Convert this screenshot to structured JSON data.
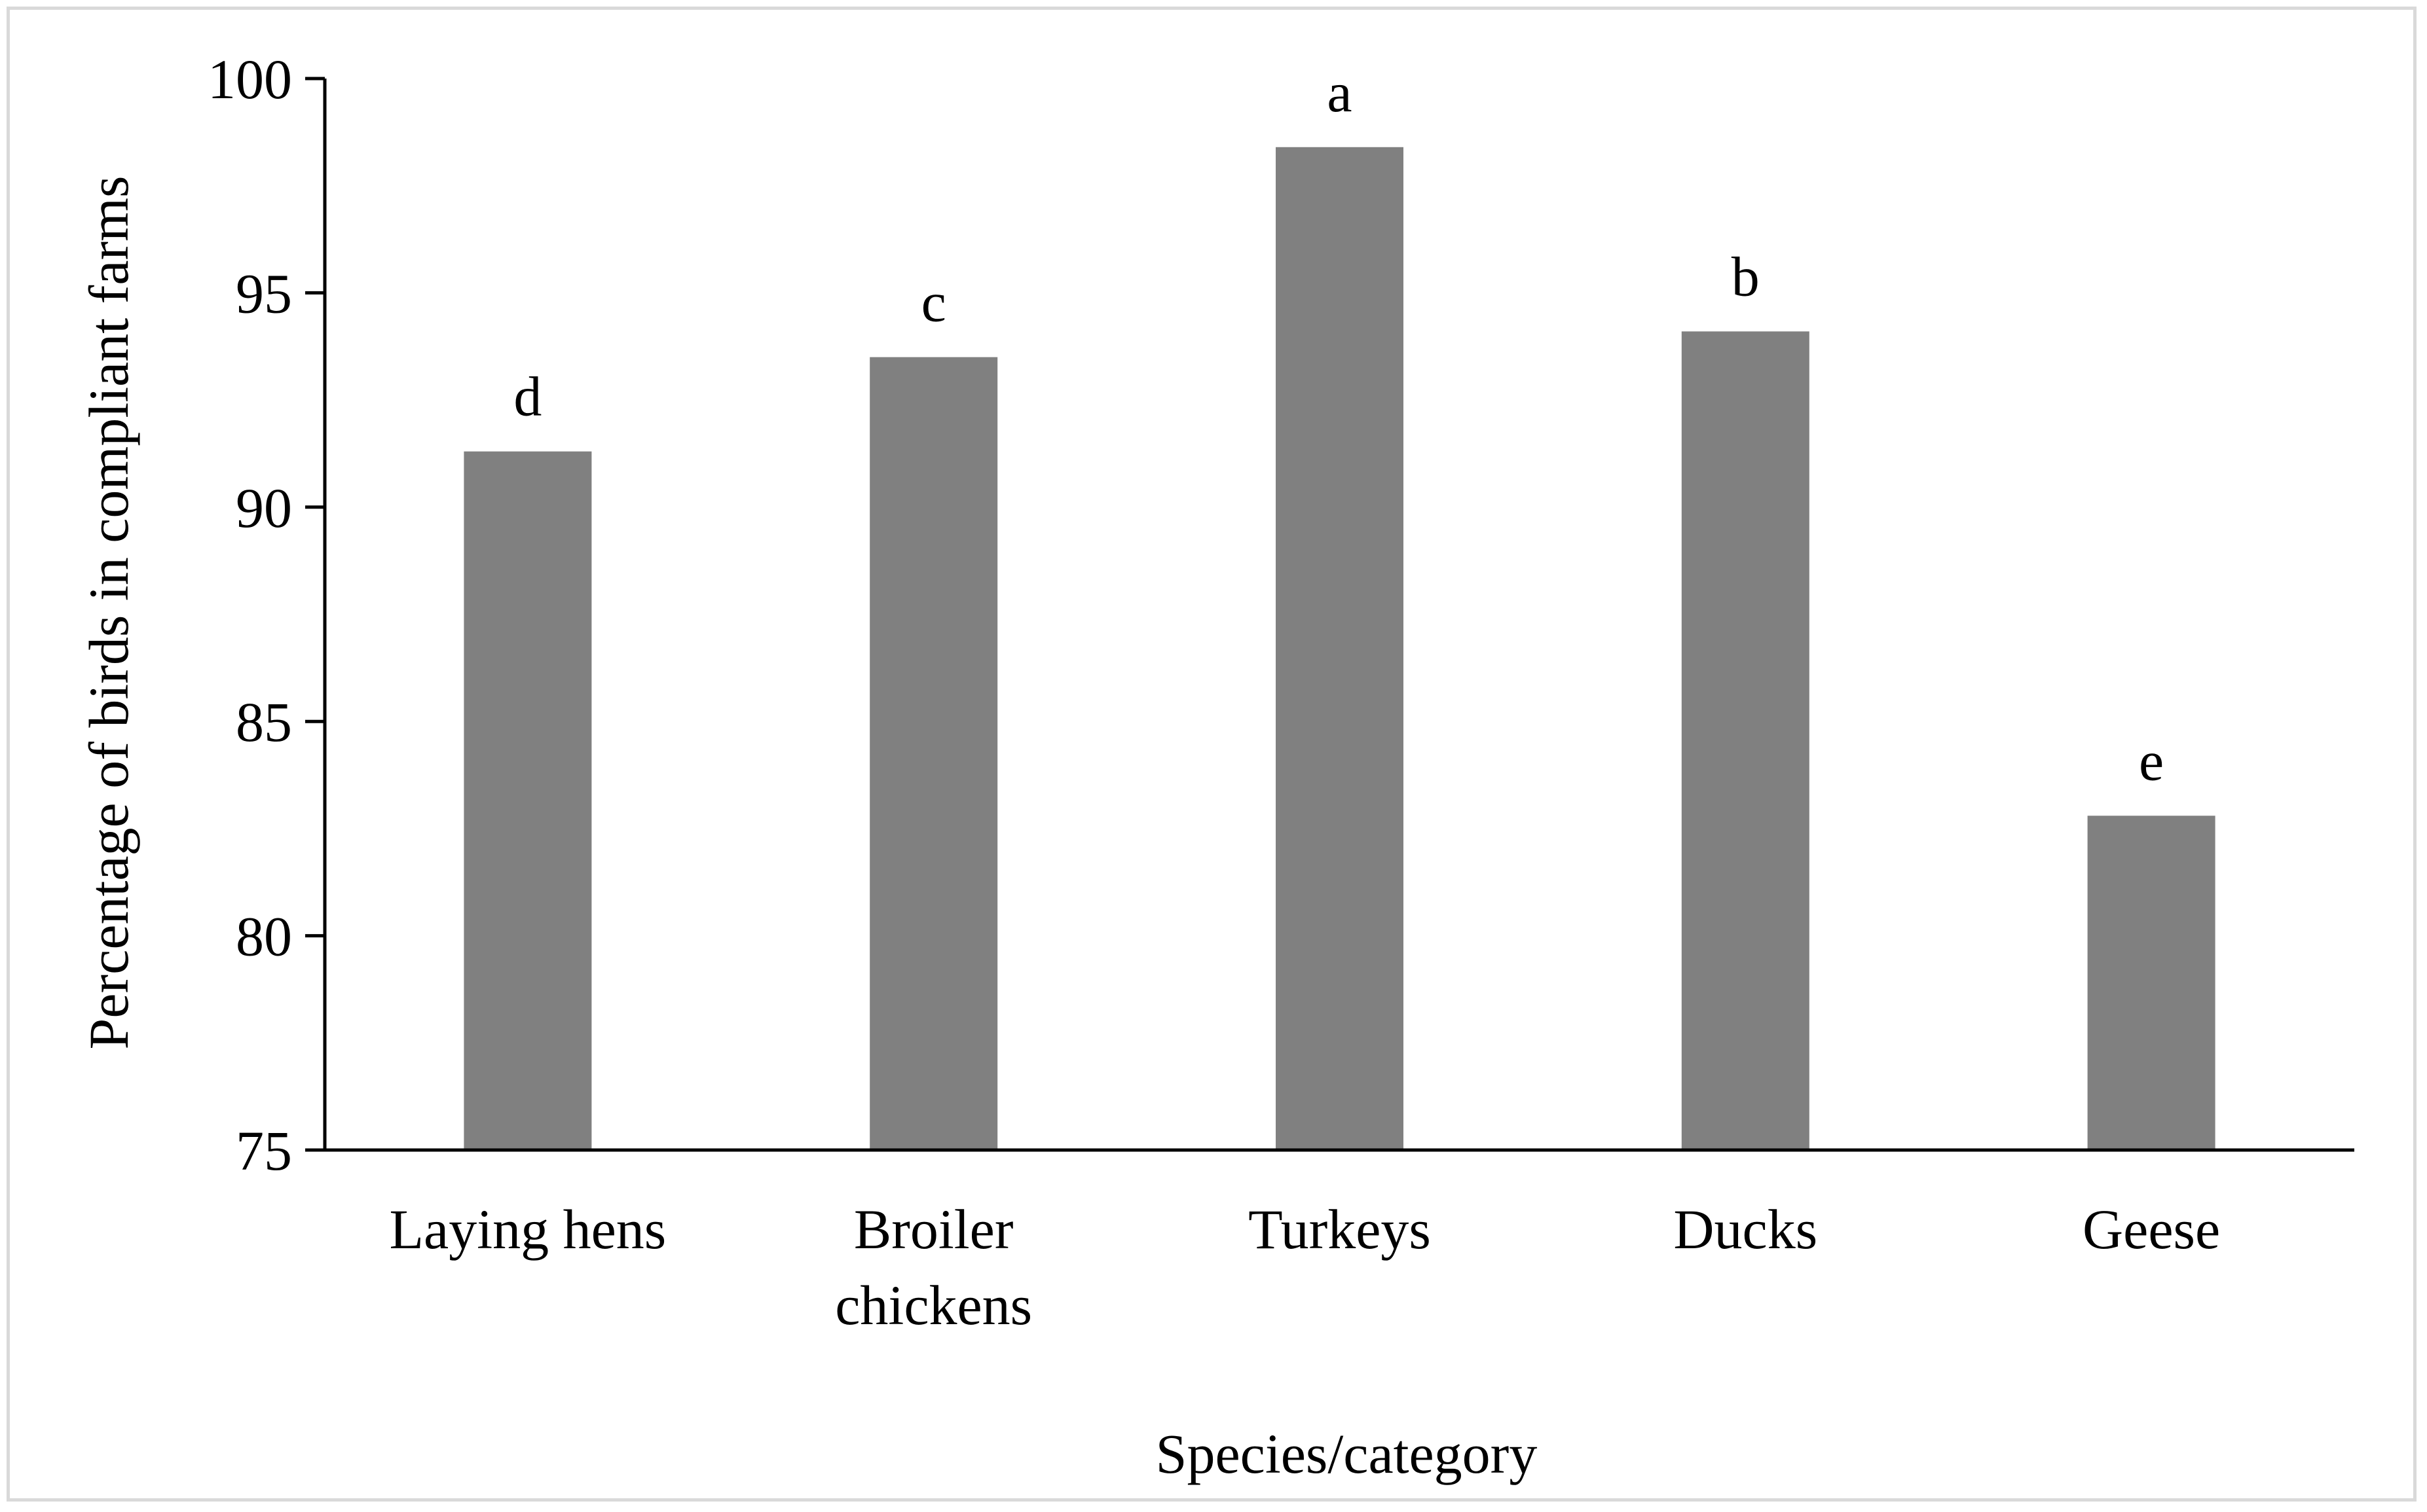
{
  "chart_data": {
    "type": "bar",
    "categories": [
      "Laying hens",
      "Broiler chickens",
      "Turkeys",
      "Ducks",
      "Geese"
    ],
    "category_lines": [
      [
        "Laying hens"
      ],
      [
        "Broiler",
        "chickens"
      ],
      [
        "Turkeys"
      ],
      [
        "Ducks"
      ],
      [
        "Geese"
      ]
    ],
    "values": [
      91.3,
      93.5,
      98.4,
      94.1,
      82.8
    ],
    "significance_labels": [
      "d",
      "c",
      "a",
      "b",
      "e"
    ],
    "title": "",
    "xlabel": "Species/category",
    "ylabel": "Percentage of birds in compliant farms",
    "ylim": [
      75,
      100
    ],
    "yticks": [
      75,
      80,
      85,
      90,
      95,
      100
    ],
    "grid": false,
    "legend": "none",
    "bar_color": "#808080",
    "axis_color": "#000000"
  }
}
